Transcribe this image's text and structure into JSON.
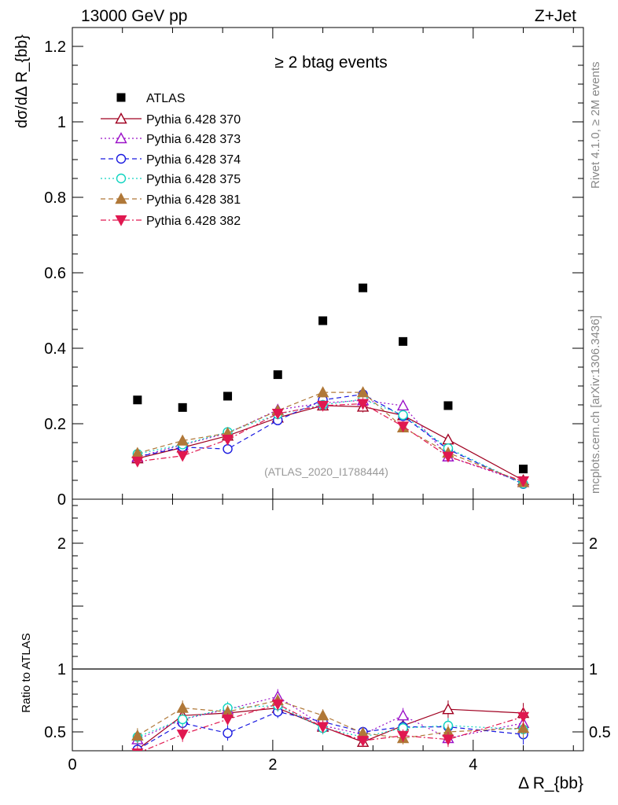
{
  "header": {
    "left": "13000 GeV pp",
    "right": "Z+Jet"
  },
  "side_labels": {
    "rivet": "Rivet 4.1.0, ≥ 2M events",
    "mcplots": "mcplots.cern.ch [arXiv:1306.3436]"
  },
  "chart_data": [
    {
      "type": "scatter",
      "panel": "main",
      "title": "≥ 2 btag events",
      "watermark": "(ATLAS_2020_I1788444)",
      "ylabel": "dσ/dΔ R_{bb}",
      "xlabel": "Δ R_{bb}",
      "xlim": [
        0,
        5.1
      ],
      "ylim": [
        0,
        1.25
      ],
      "y_ticks": [
        0,
        0.2,
        0.4,
        0.6,
        0.8,
        1,
        1.2
      ],
      "y_tick_labels": [
        "0",
        "0.2",
        "0.4",
        "0.6",
        "0.8",
        "1",
        "1.2"
      ],
      "x": [
        0.65,
        1.1,
        1.55,
        2.05,
        2.5,
        2.9,
        3.3,
        3.75,
        4.5
      ],
      "series": [
        {
          "name": "ATLAS",
          "color": "#000000",
          "marker": "square-filled",
          "dash": "none",
          "values": [
            0.263,
            0.243,
            0.273,
            0.33,
            0.473,
            0.56,
            0.418,
            0.248,
            0.08
          ]
        },
        {
          "name": "Pythia 6.428 370",
          "color": "#a00020",
          "marker": "triangle-open",
          "dash": "solid",
          "values": [
            0.108,
            0.137,
            0.168,
            0.216,
            0.248,
            0.245,
            0.222,
            0.158,
            0.05
          ]
        },
        {
          "name": "Pythia 6.428 373",
          "color": "#9b10c8",
          "marker": "triangle-open",
          "dash": "dotted",
          "values": [
            0.112,
            0.144,
            0.175,
            0.237,
            0.255,
            0.262,
            0.248,
            0.113,
            0.045
          ]
        },
        {
          "name": "Pythia 6.428 374",
          "color": "#1a1ae0",
          "marker": "circle-open",
          "dash": "dashed",
          "values": [
            0.112,
            0.138,
            0.133,
            0.209,
            0.263,
            0.278,
            0.22,
            0.132,
            0.04
          ]
        },
        {
          "name": "Pythia 6.428 375",
          "color": "#10d4c0",
          "marker": "circle-open",
          "dash": "dotted",
          "values": [
            0.12,
            0.145,
            0.178,
            0.225,
            0.25,
            0.265,
            0.223,
            0.135,
            0.041
          ]
        },
        {
          "name": "Pythia 6.428 381",
          "color": "#b07838",
          "marker": "triangle-filled",
          "dash": "dashed",
          "values": [
            0.122,
            0.155,
            0.175,
            0.235,
            0.283,
            0.283,
            0.19,
            0.123,
            0.045
          ]
        },
        {
          "name": "Pythia 6.428 382",
          "color": "#e01850",
          "marker": "triangle-down-filled",
          "dash": "dashdot",
          "values": [
            0.1,
            0.115,
            0.158,
            0.227,
            0.248,
            0.253,
            0.193,
            0.113,
            0.048
          ]
        }
      ],
      "errors": [
        [
          0.005,
          0.005,
          0.005,
          0.006,
          0.008,
          0.009,
          0.008,
          0.006,
          0.004
        ],
        [
          0.01,
          0.012,
          0.012,
          0.012,
          0.013,
          0.015,
          0.014,
          0.012,
          0.006
        ],
        [
          0.01,
          0.012,
          0.012,
          0.012,
          0.013,
          0.015,
          0.014,
          0.01,
          0.006
        ],
        [
          0.01,
          0.012,
          0.012,
          0.012,
          0.013,
          0.015,
          0.013,
          0.01,
          0.006
        ],
        [
          0.01,
          0.012,
          0.012,
          0.012,
          0.013,
          0.015,
          0.013,
          0.01,
          0.006
        ],
        [
          0.01,
          0.012,
          0.012,
          0.012,
          0.013,
          0.015,
          0.013,
          0.01,
          0.006
        ],
        [
          0.01,
          0.012,
          0.012,
          0.012,
          0.013,
          0.015,
          0.013,
          0.01,
          0.006
        ]
      ],
      "legend_position": "top-left"
    },
    {
      "type": "line",
      "panel": "ratio",
      "ylabel": "Ratio to ATLAS",
      "xlabel": "Δ R_{bb}",
      "xlim": [
        0,
        5.1
      ],
      "ylim": [
        0.35,
        2.35
      ],
      "y_ticks": [
        0.5,
        1,
        2
      ],
      "y_tick_labels": [
        "0.5",
        "1",
        "2"
      ],
      "x_ticks": [
        0,
        2,
        4
      ],
      "x_tick_labels": [
        "0",
        "2",
        "4"
      ],
      "reference_line": 1,
      "x": [
        0.65,
        1.1,
        1.55,
        2.05,
        2.5,
        2.9,
        3.3,
        3.75,
        4.5
      ],
      "series": [
        {
          "name": "Pythia 6.428 370",
          "values": [
            0.36,
            0.63,
            0.65,
            0.69,
            0.54,
            0.42,
            0.55,
            0.68,
            0.65
          ]
        },
        {
          "name": "Pythia 6.428 373",
          "values": [
            0.44,
            0.6,
            0.68,
            0.78,
            0.55,
            0.48,
            0.63,
            0.45,
            0.57
          ]
        },
        {
          "name": "Pythia 6.428 374",
          "values": [
            0.36,
            0.57,
            0.49,
            0.66,
            0.58,
            0.5,
            0.54,
            0.54,
            0.48
          ]
        },
        {
          "name": "Pythia 6.428 375",
          "values": [
            0.46,
            0.6,
            0.69,
            0.71,
            0.53,
            0.46,
            0.53,
            0.55,
            0.52
          ]
        },
        {
          "name": "Pythia 6.428 381",
          "values": [
            0.47,
            0.69,
            0.66,
            0.75,
            0.63,
            0.49,
            0.45,
            0.5,
            0.53
          ]
        },
        {
          "name": "Pythia 6.428 382",
          "values": [
            0.33,
            0.48,
            0.6,
            0.72,
            0.54,
            0.43,
            0.47,
            0.44,
            0.62
          ]
        }
      ],
      "errors": [
        [
          0.05,
          0.05,
          0.05,
          0.05,
          0.04,
          0.04,
          0.05,
          0.07,
          0.08
        ],
        [
          0.06,
          0.06,
          0.05,
          0.06,
          0.05,
          0.04,
          0.06,
          0.06,
          0.08
        ],
        [
          0.06,
          0.06,
          0.06,
          0.05,
          0.05,
          0.04,
          0.05,
          0.06,
          0.08
        ],
        [
          0.06,
          0.06,
          0.05,
          0.05,
          0.05,
          0.04,
          0.05,
          0.06,
          0.08
        ],
        [
          0.06,
          0.06,
          0.05,
          0.05,
          0.05,
          0.04,
          0.05,
          0.06,
          0.08
        ],
        [
          0.06,
          0.06,
          0.05,
          0.05,
          0.05,
          0.04,
          0.05,
          0.06,
          0.08
        ]
      ]
    }
  ]
}
